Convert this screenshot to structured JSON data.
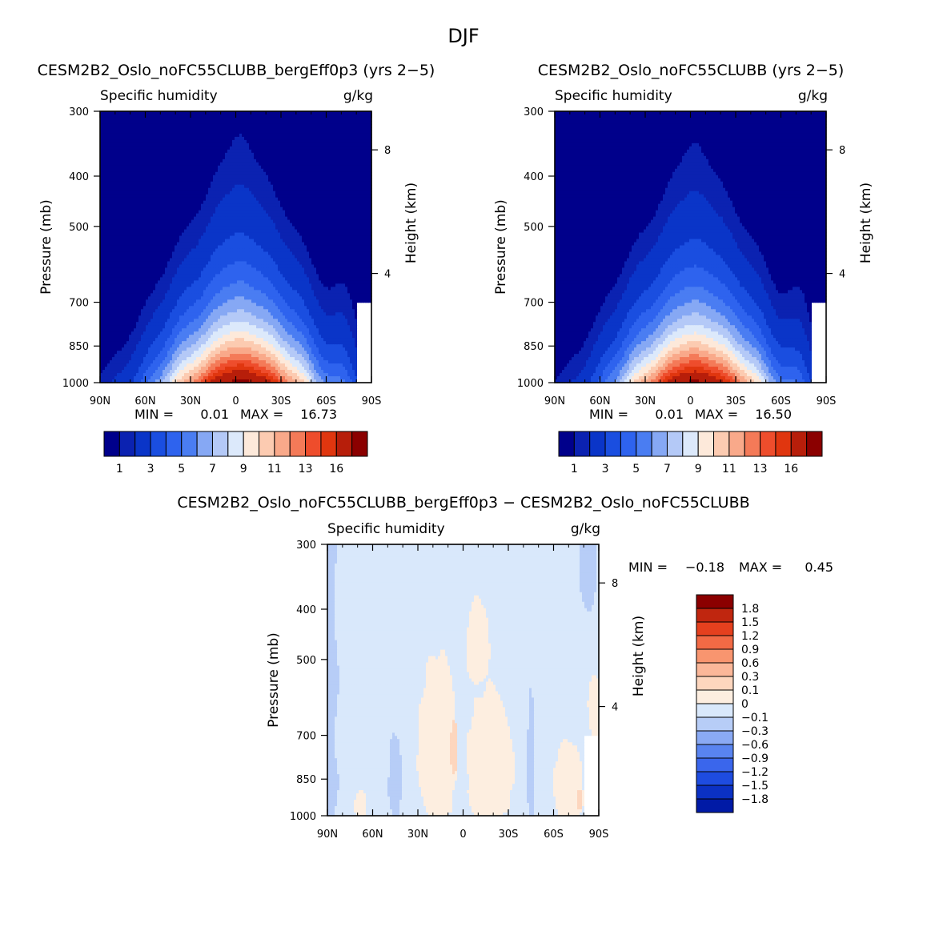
{
  "figure": {
    "season": "DJF"
  },
  "palettes": {
    "abs": [
      "#00008b",
      "#0b22b1",
      "#0a35c8",
      "#1a4ee0",
      "#2e63ee",
      "#4a7df2",
      "#86a8f4",
      "#b4c9f7",
      "#dce9fb",
      "#fde9da",
      "#fccbb1",
      "#f9a98a",
      "#f47a58",
      "#ee4d2c",
      "#e0360f",
      "#b71e0a",
      "#8b0000"
    ],
    "diff": [
      "#000080",
      "#001aa6",
      "#0b31c4",
      "#1e4ce0",
      "#3a66ec",
      "#5984f0",
      "#8aaaf4",
      "#b7cdf7",
      "#d9e8fb",
      "#fdeee0",
      "#fdd6be",
      "#fbb799",
      "#f8956f",
      "#f26a45",
      "#e5401e",
      "#c0260f",
      "#8b0000"
    ]
  },
  "chart_data": [
    {
      "id": "p1",
      "type": "contour",
      "title": "CESM2B2_Oslo_noFC55CLUBB_bergEff0p3 (yrs 2−5)",
      "left_label": "Specific humidity",
      "right_label": "g/kg",
      "ylabel": "Pressure (mb)",
      "y2label": "Height (km)",
      "x_range": [
        90,
        -90
      ],
      "y_range": [
        300,
        1000
      ],
      "x_ticks": [
        {
          "v": 90,
          "label": "90N"
        },
        {
          "v": 60,
          "label": "60N"
        },
        {
          "v": 30,
          "label": "30N"
        },
        {
          "v": 0,
          "label": "0"
        },
        {
          "v": -30,
          "label": "30S"
        },
        {
          "v": -60,
          "label": "60S"
        },
        {
          "v": -90,
          "label": "90S"
        }
      ],
      "y_ticks": [
        {
          "v": 300,
          "label": "300"
        },
        {
          "v": 400,
          "label": "400"
        },
        {
          "v": 500,
          "label": "500"
        },
        {
          "v": 700,
          "label": "700"
        },
        {
          "v": 850,
          "label": "850"
        },
        {
          "v": 1000,
          "label": "1000"
        }
      ],
      "y2_ticks": [
        {
          "p": 356,
          "label": "8"
        },
        {
          "p": 616,
          "label": "4"
        }
      ],
      "min_label": "MIN =",
      "min_value": "0.01",
      "max_label": "MAX =",
      "max_value": "16.73",
      "field": {
        "peak": 16.73,
        "center_lat": -3,
        "surface_width": 36,
        "top_width": 10,
        "scale_height": 160,
        "missing_lat": -80,
        "missing_pres": 700,
        "peak_pres": 1000
      },
      "colorbar_labels": [
        "1",
        "3",
        "5",
        "7",
        "9",
        "11",
        "13",
        "16"
      ],
      "levels": [
        0.5,
        1,
        2,
        3,
        4,
        5,
        6,
        7,
        8,
        9,
        10,
        11,
        12,
        13,
        14,
        16
      ]
    },
    {
      "id": "p2",
      "type": "contour",
      "title": "CESM2B2_Oslo_noFC55CLUBB (yrs 2−5)",
      "left_label": "Specific humidity",
      "right_label": "g/kg",
      "ylabel": "Pressure (mb)",
      "y2label": "Height (km)",
      "x_range": [
        90,
        -90
      ],
      "y_range": [
        300,
        1000
      ],
      "x_ticks": [
        {
          "v": 90,
          "label": "90N"
        },
        {
          "v": 60,
          "label": "60N"
        },
        {
          "v": 30,
          "label": "30N"
        },
        {
          "v": 0,
          "label": "0"
        },
        {
          "v": -30,
          "label": "30S"
        },
        {
          "v": -60,
          "label": "60S"
        },
        {
          "v": -90,
          "label": "90S"
        }
      ],
      "y_ticks": [
        {
          "v": 300,
          "label": "300"
        },
        {
          "v": 400,
          "label": "400"
        },
        {
          "v": 500,
          "label": "500"
        },
        {
          "v": 700,
          "label": "700"
        },
        {
          "v": 850,
          "label": "850"
        },
        {
          "v": 1000,
          "label": "1000"
        }
      ],
      "y2_ticks": [
        {
          "p": 356,
          "label": "8"
        },
        {
          "p": 616,
          "label": "4"
        }
      ],
      "min_label": "MIN =",
      "min_value": "0.01",
      "max_label": "MAX =",
      "max_value": "16.50",
      "field": {
        "peak": 16.5,
        "center_lat": -3,
        "surface_width": 35,
        "top_width": 10,
        "scale_height": 155,
        "missing_lat": -80,
        "missing_pres": 700,
        "peak_pres": 1000
      },
      "colorbar_labels": [
        "1",
        "3",
        "5",
        "7",
        "9",
        "11",
        "13",
        "16"
      ],
      "levels": [
        0.5,
        1,
        2,
        3,
        4,
        5,
        6,
        7,
        8,
        9,
        10,
        11,
        12,
        13,
        14,
        16
      ]
    },
    {
      "id": "p3",
      "type": "contour",
      "title": "CESM2B2_Oslo_noFC55CLUBB_bergEff0p3 − CESM2B2_Oslo_noFC55CLUBB",
      "left_label": "Specific humidity",
      "right_label": "g/kg",
      "ylabel": "Pressure (mb)",
      "y2label": "Height (km)",
      "x_range": [
        90,
        -90
      ],
      "y_range": [
        300,
        1000
      ],
      "x_ticks": [
        {
          "v": 90,
          "label": "90N"
        },
        {
          "v": 60,
          "label": "60N"
        },
        {
          "v": 30,
          "label": "30N"
        },
        {
          "v": 0,
          "label": "0"
        },
        {
          "v": -30,
          "label": "30S"
        },
        {
          "v": -60,
          "label": "60S"
        },
        {
          "v": -90,
          "label": "90S"
        }
      ],
      "y_ticks": [
        {
          "v": 300,
          "label": "300"
        },
        {
          "v": 400,
          "label": "400"
        },
        {
          "v": 500,
          "label": "500"
        },
        {
          "v": 700,
          "label": "700"
        },
        {
          "v": 850,
          "label": "850"
        },
        {
          "v": 1000,
          "label": "1000"
        }
      ],
      "y2_ticks": [
        {
          "p": 356,
          "label": "8"
        },
        {
          "p": 616,
          "label": "4"
        }
      ],
      "min_label": "MIN =",
      "min_value": "−0.18",
      "max_label": "MAX =",
      "max_value": "0.45",
      "colorbar_labels": [
        "1.8",
        "1.5",
        "1.2",
        "0.9",
        "0.6",
        "0.3",
        "0.1",
        "0",
        "−0.1",
        "−0.3",
        "−0.6",
        "−0.9",
        "−1.2",
        "−1.5",
        "−1.8"
      ],
      "levels": [
        -1.8,
        -1.5,
        -1.2,
        -0.9,
        -0.6,
        -0.3,
        -0.1,
        0,
        0.1,
        0.3,
        0.6,
        0.9,
        1.2,
        1.5,
        1.8
      ],
      "regions": [
        {
          "value": -0.05,
          "kind": "band",
          "lat1": 90,
          "lat2": 84,
          "wobble": 1.5
        },
        {
          "value": 0.2,
          "kind": "blob",
          "lat": 17,
          "pres": 760,
          "dlat": 13,
          "dpres": 280
        },
        {
          "value": 0.4,
          "kind": "blob",
          "lat": 6,
          "pres": 740,
          "dlat": 2.5,
          "dpres": 90
        },
        {
          "value": 0.2,
          "kind": "blob",
          "lat": -18,
          "pres": 800,
          "dlat": 16,
          "dpres": 240
        },
        {
          "value": 0.2,
          "kind": "blob",
          "lat": -10,
          "pres": 470,
          "dlat": 8,
          "dpres": 90
        },
        {
          "value": -0.05,
          "kind": "blob",
          "lat": 45,
          "pres": 850,
          "dlat": 4.5,
          "dpres": 160
        },
        {
          "value": -0.05,
          "kind": "blob",
          "lat": -45,
          "pres": 800,
          "dlat": 2.5,
          "dpres": 220
        },
        {
          "value": 0.2,
          "kind": "blob",
          "lat": -70,
          "pres": 880,
          "dlat": 10,
          "dpres": 170
        },
        {
          "value": 0.2,
          "kind": "blob",
          "lat": 68,
          "pres": 960,
          "dlat": 4,
          "dpres": 70
        },
        {
          "value": 0.4,
          "kind": "blob",
          "lat": -77,
          "pres": 930,
          "dlat": 2,
          "dpres": 40
        },
        {
          "value": 0.2,
          "kind": "blob",
          "lat": -87,
          "pres": 620,
          "dlat": 4,
          "dpres": 90
        },
        {
          "value": -0.05,
          "kind": "blob",
          "lat": -83,
          "pres": 340,
          "dlat": 6,
          "dpres": 60
        }
      ],
      "missing": {
        "lat": -80,
        "pres": 700
      }
    }
  ]
}
